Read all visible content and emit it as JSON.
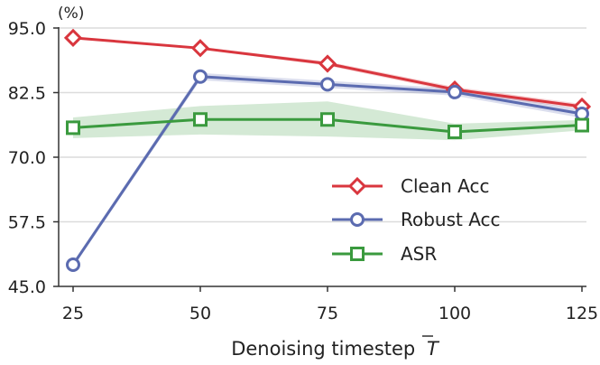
{
  "chart_data": {
    "type": "line",
    "x": [
      25,
      50,
      75,
      100,
      125
    ],
    "xlabel": "Denoising timestep",
    "xlabel_symbol": "T",
    "ylabel": "(%)",
    "yticks": [
      "45.0",
      "57.5",
      "70.0",
      "82.5",
      "95.0"
    ],
    "xticks": [
      "25",
      "50",
      "75",
      "100",
      "125"
    ],
    "ylim": [
      45.0,
      95.0
    ],
    "xlim": [
      25,
      125
    ],
    "grid": "horizontal",
    "legend_position": "center-right",
    "series": [
      {
        "name": "Clean Acc",
        "color": "#d9363e",
        "marker": "diamond",
        "values": [
          93.1,
          91.1,
          88.1,
          83.1,
          79.8
        ],
        "band_low": [
          93.0,
          90.9,
          87.7,
          82.6,
          79.3
        ],
        "band_high": [
          93.3,
          91.3,
          88.5,
          83.6,
          80.3
        ]
      },
      {
        "name": "Robust Acc",
        "color": "#5b6bb0",
        "marker": "circle",
        "values": [
          49.2,
          85.6,
          84.1,
          82.6,
          78.4
        ],
        "band_low": [
          48.7,
          84.9,
          83.4,
          81.9,
          77.6
        ],
        "band_high": [
          49.7,
          86.3,
          84.8,
          83.3,
          79.2
        ]
      },
      {
        "name": "ASR",
        "color": "#3a9a3e",
        "marker": "square",
        "values": [
          75.7,
          77.3,
          77.3,
          74.9,
          76.2
        ],
        "band_low": [
          73.7,
          74.4,
          74.0,
          73.3,
          75.2
        ],
        "band_high": [
          77.7,
          79.9,
          80.8,
          76.5,
          77.2
        ]
      }
    ]
  }
}
